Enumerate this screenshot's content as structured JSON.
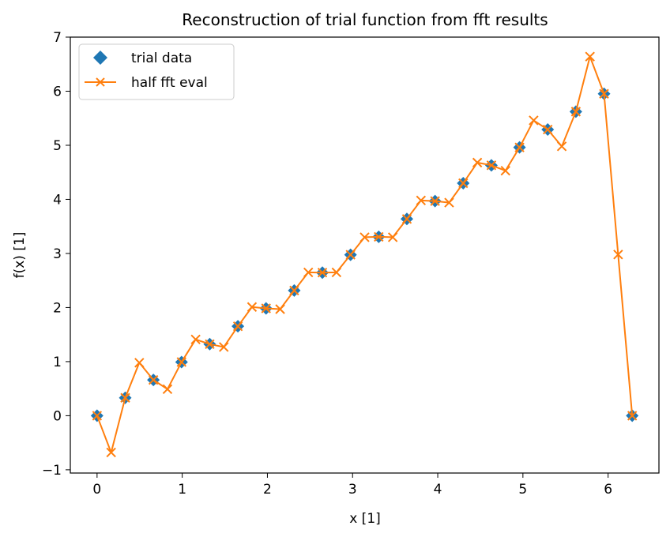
{
  "chart_data": {
    "type": "line",
    "title": "Reconstruction of trial function from fft results",
    "xlabel": "x [1]",
    "ylabel": "f(x) [1]",
    "xlim": [
      -0.314,
      6.597
    ],
    "ylim": [
      -1.06,
      7.0
    ],
    "xticks": [
      0,
      1,
      2,
      3,
      4,
      5,
      6
    ],
    "yticks": [
      -1,
      0,
      1,
      2,
      3,
      4,
      5,
      6,
      7
    ],
    "xtick_labels": [
      "0",
      "1",
      "2",
      "3",
      "4",
      "5",
      "6"
    ],
    "ytick_labels": [
      "−1",
      "0",
      "1",
      "2",
      "3",
      "4",
      "5",
      "6",
      "7"
    ],
    "grid": false,
    "legend_position": "top-left",
    "series": [
      {
        "name": "trial data",
        "style": "markers",
        "marker": "diamond",
        "color": "#1f77b4",
        "x": [
          0.0,
          0.3307,
          0.6614,
          0.9921,
          1.3228,
          1.6535,
          1.9842,
          2.3149,
          2.6456,
          2.9762,
          3.3069,
          3.6376,
          3.9683,
          4.299,
          4.6297,
          4.9604,
          5.2911,
          5.6218,
          5.9525,
          6.2832
        ],
        "y": [
          0.0,
          0.3307,
          0.6614,
          0.9921,
          1.3228,
          1.6535,
          1.9842,
          2.3149,
          2.6456,
          2.9762,
          3.3069,
          3.6376,
          3.9683,
          4.299,
          4.6297,
          4.9604,
          5.2911,
          5.6218,
          5.9525,
          0.0
        ]
      },
      {
        "name": "half fft eval",
        "style": "line-markers",
        "marker": "x",
        "color": "#ff7f0e",
        "x": [
          0.0,
          0.1653,
          0.3307,
          0.496,
          0.6614,
          0.8267,
          0.9921,
          1.1574,
          1.3228,
          1.4881,
          1.6535,
          1.8188,
          1.9842,
          2.1495,
          2.3149,
          2.4802,
          2.6456,
          2.8109,
          2.9762,
          3.1416,
          3.3069,
          3.4723,
          3.6376,
          3.803,
          3.9683,
          4.1337,
          4.299,
          4.4644,
          4.6297,
          4.7951,
          4.9604,
          5.1258,
          5.2911,
          5.4565,
          5.6218,
          5.7872,
          5.9525,
          6.1179,
          6.2832
        ],
        "y": [
          0.0,
          -0.68,
          0.3307,
          0.98,
          0.6614,
          0.49,
          0.9921,
          1.41,
          1.3228,
          1.27,
          1.6535,
          2.01,
          1.9842,
          1.97,
          2.3149,
          2.65,
          2.6456,
          2.65,
          2.9762,
          3.3,
          3.3069,
          3.3,
          3.6376,
          3.98,
          3.9683,
          3.94,
          4.299,
          4.68,
          4.6297,
          4.53,
          4.9604,
          5.46,
          5.2911,
          4.98,
          5.6218,
          6.64,
          5.9525,
          2.98,
          0.0
        ]
      }
    ]
  }
}
